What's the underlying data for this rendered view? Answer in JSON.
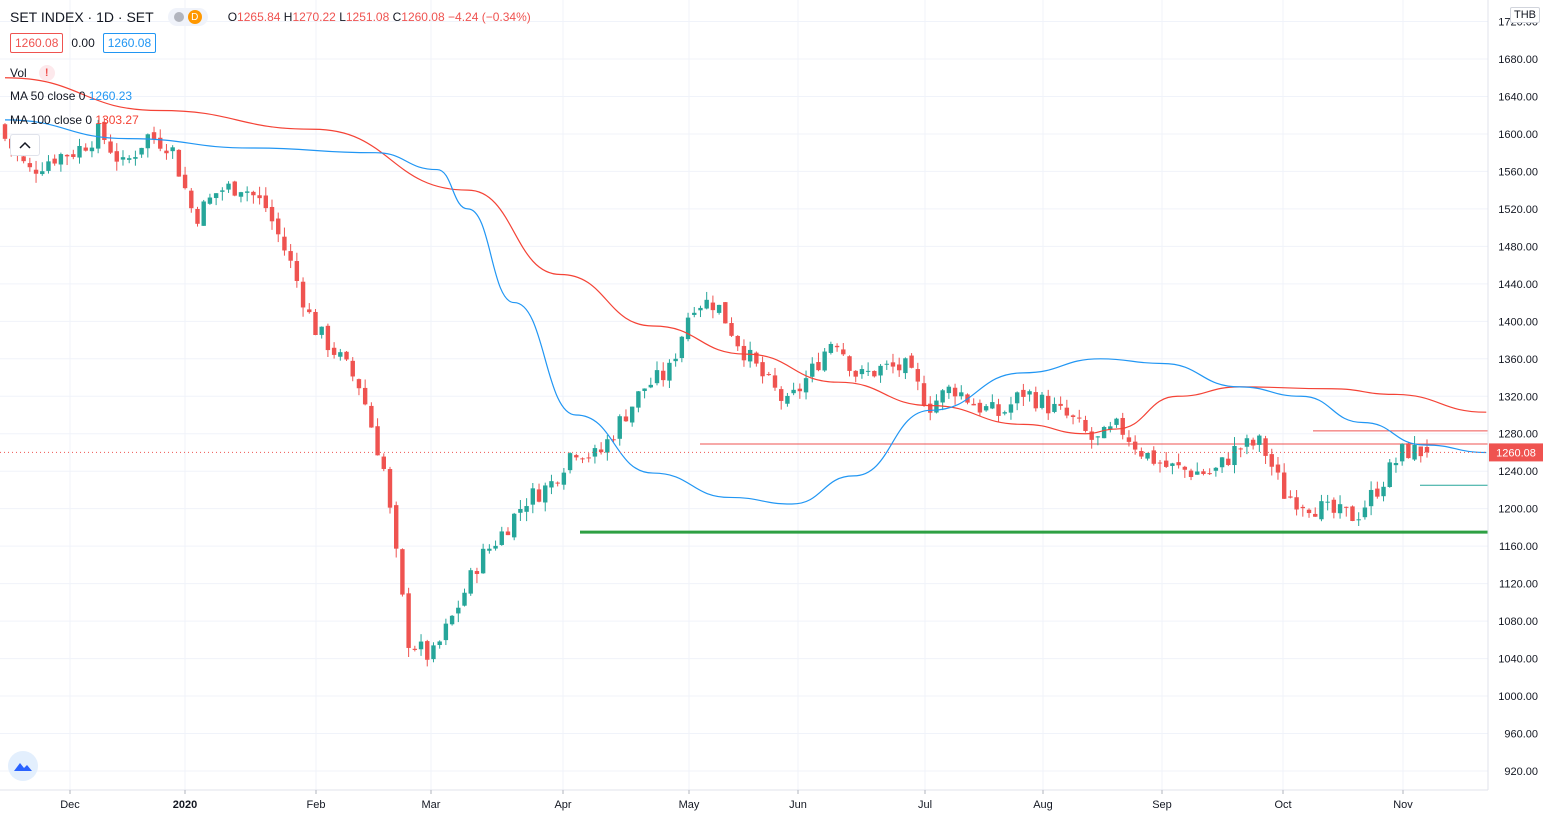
{
  "header": {
    "symbol": "SET INDEX",
    "interval": "1D",
    "exchange": "SET",
    "open_label": "O",
    "open": "1265.84",
    "high_label": "H",
    "high": "1270.22",
    "low_label": "L",
    "low": "1251.08",
    "close_label": "C",
    "close": "1260.08",
    "change": "−4.24 (−0.34%)",
    "session_badge": "D"
  },
  "price_boxes": {
    "bid": "1260.08",
    "spread": "0.00",
    "ask": "1260.08"
  },
  "indicators": {
    "volume_label": "Vol",
    "volume_warning": "!",
    "ma50_label": "MA 50 close 0",
    "ma50_value": "1260.23",
    "ma100_label": "MA 100 close 0",
    "ma100_value": "1303.27"
  },
  "currency": "THB",
  "colors": {
    "up": "#26a69a",
    "down": "#ef5350",
    "ma50": "#2196f3",
    "ma100": "#f44336",
    "support": "#2ea043",
    "grid": "#f0f3fa",
    "text": "#131722",
    "axis_text": "#131722"
  },
  "icons": {
    "collapse": "chevron-up-icon",
    "logo": "tradingview-logo-icon",
    "warning": "warning-icon"
  },
  "chart_data": {
    "type": "candlestick",
    "symbol": "SET INDEX",
    "ylim": [
      900,
      1720
    ],
    "y_ticks": [
      920,
      960,
      1000,
      1040,
      1080,
      1120,
      1160,
      1200,
      1240,
      1280,
      1320,
      1360,
      1400,
      1440,
      1480,
      1520,
      1560,
      1600,
      1640,
      1680,
      1720
    ],
    "x_labels": [
      "Dec",
      "2020",
      "Feb",
      "Mar",
      "Apr",
      "May",
      "Jun",
      "Jul",
      "Aug",
      "Sep",
      "Oct",
      "Nov"
    ],
    "last_price": 1260.08,
    "price_path": [
      [
        1610,
        1595
      ],
      [
        1575,
        1560
      ],
      [
        1548,
        1575
      ],
      [
        1562,
        1582
      ],
      [
        1590,
        1602
      ],
      [
        1600,
        1565
      ],
      [
        1580,
        1598
      ],
      [
        1605,
        1588
      ],
      [
        1575,
        1510
      ],
      [
        1525,
        1540
      ],
      [
        1500,
        1545
      ],
      [
        1540,
        1522
      ],
      [
        1500,
        1465
      ],
      [
        1455,
        1395
      ],
      [
        1385,
        1365
      ],
      [
        1360,
        1330
      ],
      [
        1260,
        1240
      ],
      [
        1200,
        1060
      ],
      [
        1000,
        1040
      ],
      [
        1025,
        1090
      ],
      [
        1100,
        1145
      ],
      [
        1145,
        1175
      ],
      [
        1190,
        1210
      ],
      [
        1205,
        1225
      ],
      [
        1225,
        1265
      ],
      [
        1265,
        1255
      ],
      [
        1275,
        1295
      ],
      [
        1285,
        1330
      ],
      [
        1320,
        1345
      ],
      [
        1365,
        1420
      ],
      [
        1440,
        1420
      ],
      [
        1390,
        1375
      ],
      [
        1365,
        1340
      ],
      [
        1320,
        1310
      ],
      [
        1330,
        1345
      ],
      [
        1375,
        1385
      ],
      [
        1360,
        1340
      ],
      [
        1345,
        1350
      ],
      [
        1365,
        1350
      ],
      [
        1330,
        1310
      ],
      [
        1320,
        1330
      ],
      [
        1325,
        1310
      ],
      [
        1300,
        1300
      ],
      [
        1310,
        1325
      ],
      [
        1320,
        1310
      ],
      [
        1300,
        1295
      ],
      [
        1285,
        1270
      ],
      [
        1280,
        1288
      ],
      [
        1285,
        1260
      ],
      [
        1250,
        1245
      ],
      [
        1260,
        1240
      ],
      [
        1235,
        1238
      ],
      [
        1250,
        1265
      ],
      [
        1275,
        1270
      ],
      [
        1245,
        1215
      ],
      [
        1210,
        1205
      ],
      [
        1208,
        1195
      ],
      [
        1195,
        1192
      ],
      [
        1210,
        1225
      ],
      [
        1238,
        1262
      ],
      [
        1265,
        1260.08
      ]
    ],
    "series": [
      {
        "name": "MA 50 close 0",
        "last": 1260.23,
        "points": [
          [
            0,
            1615
          ],
          [
            0.08,
            1595
          ],
          [
            0.16,
            1585
          ],
          [
            0.24,
            1580
          ],
          [
            0.28,
            1562
          ],
          [
            0.3,
            1520
          ],
          [
            0.33,
            1420
          ],
          [
            0.37,
            1300
          ],
          [
            0.42,
            1238
          ],
          [
            0.47,
            1212
          ],
          [
            0.51,
            1205
          ],
          [
            0.55,
            1235
          ],
          [
            0.6,
            1305
          ],
          [
            0.66,
            1345
          ],
          [
            0.71,
            1360
          ],
          [
            0.75,
            1355
          ],
          [
            0.8,
            1330
          ],
          [
            0.84,
            1320
          ],
          [
            0.88,
            1292
          ],
          [
            0.92,
            1268
          ],
          [
            0.96,
            1260
          ]
        ]
      },
      {
        "name": "MA 100 close 0",
        "last": 1303.27,
        "points": [
          [
            0,
            1660
          ],
          [
            0.1,
            1625
          ],
          [
            0.2,
            1605
          ],
          [
            0.3,
            1540
          ],
          [
            0.36,
            1450
          ],
          [
            0.42,
            1395
          ],
          [
            0.48,
            1365
          ],
          [
            0.54,
            1335
          ],
          [
            0.6,
            1310
          ],
          [
            0.66,
            1290
          ],
          [
            0.7,
            1280
          ],
          [
            0.72,
            1285
          ],
          [
            0.76,
            1320
          ],
          [
            0.8,
            1330
          ],
          [
            0.86,
            1328
          ],
          [
            0.9,
            1322
          ],
          [
            0.96,
            1303
          ]
        ]
      }
    ],
    "horizontal_lines": [
      {
        "price": 1283,
        "color": "#ef5350"
      },
      {
        "price": 1269,
        "color": "#ef5350"
      },
      {
        "price": 1225,
        "color": "#26a69a"
      },
      {
        "price": 1175,
        "color": "#2ea043"
      }
    ]
  }
}
